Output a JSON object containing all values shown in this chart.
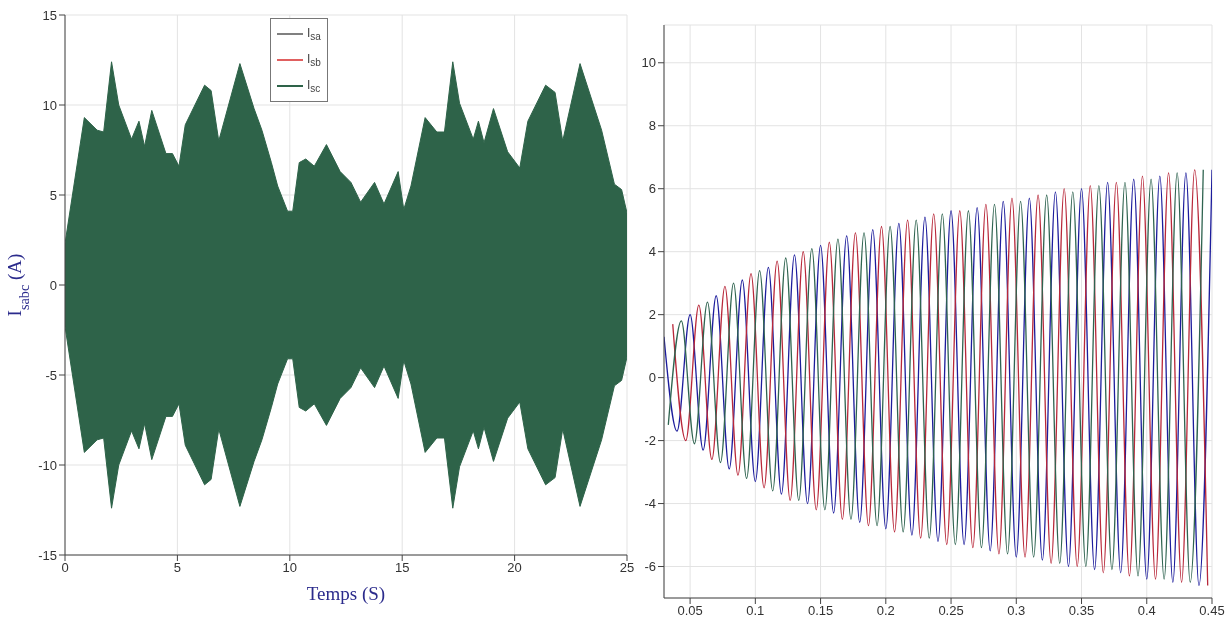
{
  "chart_data": [
    {
      "type": "area",
      "xlabel": "Temps (S)",
      "ylabel": "I$_{sabc}$ (A)",
      "xlim": [
        0,
        25
      ],
      "xticks": [
        0,
        5,
        10,
        15,
        20,
        25
      ],
      "ylim": [
        -15,
        15
      ],
      "yticks": [
        -15,
        -10,
        -5,
        0,
        5,
        10,
        15
      ],
      "grid": true,
      "legend": "top",
      "x": [
        0,
        0.86,
        1.43,
        1.72,
        2.07,
        2.39,
        2.96,
        3.29,
        3.54,
        3.86,
        4.49,
        4.78,
        5.07,
        5.35,
        6.21,
        6.5,
        6.84,
        7.78,
        8.41,
        8.76,
        9.18,
        9.46,
        9.9,
        10.13,
        10.42,
        10.71,
        11.09,
        11.63,
        12.24,
        12.72,
        13.15,
        13.77,
        14.19,
        14.82,
        15.07,
        15.39,
        16.02,
        16.54,
        16.88,
        17.25,
        17.55,
        18.16,
        18.39,
        18.64,
        19.06,
        19.69,
        20.23,
        20.59,
        21.38,
        21.8,
        22.14,
        22.91,
        23.87,
        24.44,
        24.76,
        25
      ],
      "series": [
        {
          "name": "I$_{sa}$",
          "color": "#808080",
          "values": [
            null,
            null,
            null,
            null,
            null,
            null,
            null,
            null,
            null,
            null,
            null,
            null,
            null,
            null,
            null,
            null,
            null,
            null,
            null,
            null,
            null,
            null,
            null,
            null,
            null,
            null,
            null,
            null,
            null,
            null,
            null,
            null,
            null,
            null,
            null,
            null,
            null,
            null,
            null,
            null,
            null,
            null,
            null,
            null,
            null,
            null,
            null,
            null,
            null,
            null,
            null,
            null,
            null,
            null,
            null,
            null
          ]
        },
        {
          "name": "I$_{sb}$",
          "color": "#e06060",
          "values": [
            null,
            null,
            null,
            null,
            null,
            null,
            null,
            null,
            null,
            null,
            null,
            null,
            null,
            null,
            null,
            null,
            null,
            null,
            null,
            null,
            null,
            null,
            null,
            null,
            null,
            null,
            null,
            null,
            null,
            null,
            null,
            null,
            null,
            null,
            null,
            null,
            null,
            null,
            null,
            null,
            null,
            null,
            null,
            null,
            null,
            null,
            null,
            null,
            null,
            null,
            null,
            null,
            null,
            null,
            null,
            null
          ]
        },
        {
          "name": "I$_{sc}$",
          "color": "#2e6349",
          "values": [
            2.3,
            9.3,
            8.6,
            8.5,
            12.4,
            10.0,
            8.1,
            9.1,
            7.7,
            9.7,
            7.3,
            7.3,
            6.6,
            8.9,
            11.1,
            10.8,
            8.0,
            12.3,
            9.8,
            8.6,
            6.8,
            5.5,
            4.1,
            4.1,
            6.8,
            7.0,
            6.6,
            7.8,
            6.3,
            5.7,
            4.6,
            5.7,
            4.5,
            6.3,
            4.2,
            5.5,
            9.3,
            8.5,
            8.5,
            12.4,
            10.1,
            8.1,
            9.1,
            7.9,
            9.8,
            7.4,
            6.5,
            9.1,
            11.1,
            10.7,
            8.0,
            12.3,
            8.6,
            5.6,
            5.3,
            4.0
          ]
        },
        {
          "color": "#2e6349",
          "values": [
            -2.3,
            -9.3,
            -8.6,
            -8.5,
            -12.4,
            -10.0,
            -8.1,
            -9.1,
            -7.7,
            -9.7,
            -7.3,
            -7.3,
            -6.6,
            -8.9,
            -11.1,
            -10.8,
            -8.0,
            -12.3,
            -9.8,
            -8.6,
            -6.8,
            -5.5,
            -4.1,
            -4.1,
            -6.8,
            -7.0,
            -6.6,
            -7.8,
            -6.3,
            -5.7,
            -4.6,
            -5.7,
            -4.5,
            -6.3,
            -4.2,
            -5.5,
            -9.3,
            -8.5,
            -8.5,
            -12.4,
            -10.1,
            -8.1,
            -9.1,
            -7.9,
            -9.8,
            -7.4,
            -6.5,
            -9.1,
            -11.1,
            -10.7,
            -8.0,
            -12.3,
            -8.6,
            -5.6,
            -5.3,
            -4.0
          ]
        }
      ]
    },
    {
      "type": "line",
      "xlim": [
        0.03,
        0.45
      ],
      "xticks": [
        0.05,
        0.1,
        0.15,
        0.2,
        0.25,
        0.3,
        0.35,
        0.4,
        0.45
      ],
      "ylim": [
        -7,
        11.2
      ],
      "yticks": [
        -6,
        -4,
        -2,
        0,
        2,
        4,
        6,
        8,
        10
      ],
      "grid": true,
      "series": [
        {
          "color": "#1c1c9c",
          "x": [
            0.03,
            0.04,
            0.05,
            0.06,
            0.07,
            0.08,
            0.09,
            0.1,
            0.11,
            0.12,
            0.13,
            0.14,
            0.15,
            0.16,
            0.17,
            0.18,
            0.19,
            0.2,
            0.21,
            0.22,
            0.23,
            0.24,
            0.25,
            0.26,
            0.27,
            0.28,
            0.29,
            0.3,
            0.31,
            0.32,
            0.33,
            0.34,
            0.35,
            0.36,
            0.37,
            0.38,
            0.39,
            0.4,
            0.41,
            0.42,
            0.43,
            0.44,
            0.45
          ],
          "values": [
            1.3,
            -1.7,
            2.0,
            -2.3,
            2.6,
            -2.9,
            3.1,
            -3.3,
            3.5,
            -3.7,
            3.9,
            -4.0,
            4.2,
            -4.3,
            4.5,
            -4.6,
            4.7,
            -4.8,
            4.9,
            -5.0,
            5.1,
            -5.2,
            5.3,
            -5.3,
            5.4,
            -5.5,
            5.6,
            -5.7,
            5.7,
            -5.8,
            5.9,
            -6.0,
            6.0,
            -6.1,
            6.2,
            -6.2,
            6.3,
            -6.4,
            6.4,
            -6.5,
            6.5,
            -6.6,
            6.6
          ]
        },
        {
          "color": "#b8283a",
          "x": [
            0.0367,
            0.0467,
            0.0567,
            0.0667,
            0.0767,
            0.0867,
            0.0967,
            0.1067,
            0.1167,
            0.1267,
            0.1367,
            0.1467,
            0.1567,
            0.1667,
            0.1767,
            0.1867,
            0.1967,
            0.2067,
            0.2167,
            0.2267,
            0.2367,
            0.2467,
            0.2567,
            0.2667,
            0.2767,
            0.2867,
            0.2967,
            0.3067,
            0.3167,
            0.3267,
            0.3367,
            0.3467,
            0.3567,
            0.3667,
            0.3767,
            0.3867,
            0.3967,
            0.4067,
            0.4167,
            0.4267,
            0.4367,
            0.4467
          ],
          "values": [
            1.7,
            -2.0,
            2.3,
            -2.6,
            2.9,
            -3.1,
            3.3,
            -3.5,
            3.7,
            -3.9,
            4.0,
            -4.2,
            4.3,
            -4.5,
            4.6,
            -4.7,
            4.8,
            -4.9,
            5.0,
            -5.1,
            5.2,
            -5.3,
            5.3,
            -5.4,
            5.5,
            -5.6,
            5.7,
            -5.7,
            5.8,
            -5.9,
            6.0,
            -6.0,
            6.1,
            -6.2,
            6.2,
            -6.3,
            6.4,
            -6.4,
            6.5,
            -6.5,
            6.6,
            -6.6
          ]
        },
        {
          "color": "#2f6450",
          "x": [
            0.0333,
            0.0433,
            0.0533,
            0.0633,
            0.0733,
            0.0833,
            0.0933,
            0.1033,
            0.1133,
            0.1233,
            0.1333,
            0.1433,
            0.1533,
            0.1633,
            0.1733,
            0.1833,
            0.1933,
            0.2033,
            0.2133,
            0.2233,
            0.2333,
            0.2433,
            0.2533,
            0.2633,
            0.2733,
            0.2833,
            0.2933,
            0.3033,
            0.3133,
            0.3233,
            0.3333,
            0.3433,
            0.3533,
            0.3633,
            0.3733,
            0.3833,
            0.3933,
            0.4033,
            0.4133,
            0.4233,
            0.4333,
            0.4433
          ],
          "values": [
            -1.5,
            1.8,
            -2.1,
            2.4,
            -2.7,
            3.0,
            -3.2,
            3.4,
            -3.6,
            3.8,
            -3.9,
            4.1,
            -4.2,
            4.4,
            -4.5,
            4.6,
            -4.7,
            4.8,
            -4.9,
            5.0,
            -5.1,
            5.2,
            -5.3,
            5.3,
            -5.4,
            5.5,
            -5.6,
            5.6,
            -5.7,
            5.8,
            -5.9,
            5.9,
            -6.0,
            6.1,
            -6.1,
            6.2,
            -6.3,
            6.3,
            -6.4,
            6.5,
            -6.5,
            6.6
          ]
        }
      ]
    }
  ]
}
